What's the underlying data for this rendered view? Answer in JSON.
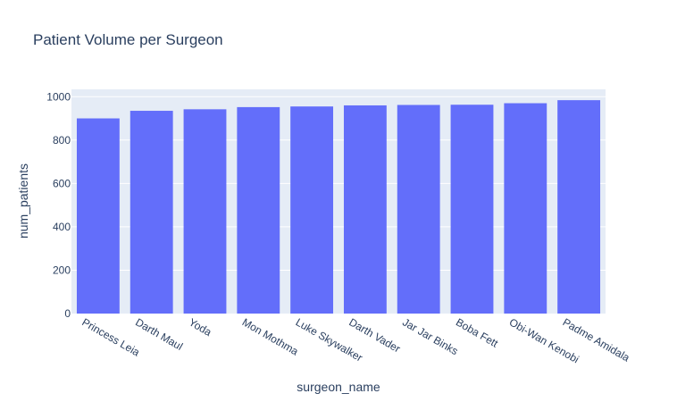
{
  "chart_data": {
    "type": "bar",
    "title": "Patient Volume per Surgeon",
    "xlabel": "surgeon_name",
    "ylabel": "num_patients",
    "categories": [
      "Princess Leia",
      "Darth Maul",
      "Yoda",
      "Mon Mothma",
      "Luke Skywalker",
      "Darth Vader",
      "Jar Jar Binks",
      "Boba Fett",
      "Obi-Wan Kenobi",
      "Padme Amidala"
    ],
    "values": [
      900,
      935,
      942,
      952,
      955,
      960,
      962,
      963,
      970,
      984
    ],
    "ylim": [
      0,
      1034
    ],
    "yticks": [
      0,
      200,
      400,
      600,
      800,
      1000
    ],
    "grid": true,
    "bar_color": "#636efa",
    "plot_bg": "#e5ecf6"
  }
}
